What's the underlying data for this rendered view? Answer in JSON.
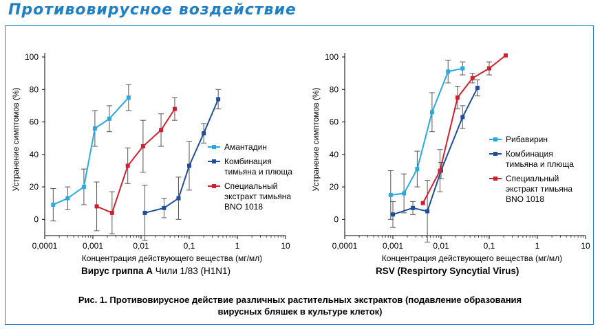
{
  "page_title": "Противовирусное воздействие",
  "caption_line1": "Рис. 1. Противовирусное действие различных растительных экстрактов (подавление образования",
  "caption_line2": "вирусных бляшек в культуре клеток)",
  "colors": {
    "frame": "#1e7fc4",
    "light_blue": "#29a9e1",
    "dark_blue": "#1f4e9c",
    "red": "#d0202e",
    "error_bar": "#555555"
  },
  "chart_data": [
    {
      "type": "line",
      "title_bold": "Вирус гриппа А",
      "title_rest": " Чили 1/83 (H1N1)",
      "xlabel": "Концентрация действующего вещества (мг/мл)",
      "ylabel": "Устранение симптомов (%)",
      "xscale": "log",
      "xlim": [
        0.0001,
        10
      ],
      "ylim": [
        -10,
        100
      ],
      "xticks": [
        "0,0001",
        "0,001",
        "0,01",
        "0,1",
        "1",
        "10"
      ],
      "yticks": [
        "0",
        "20",
        "40",
        "60",
        "80",
        "100"
      ],
      "legend_position": "right",
      "series": [
        {
          "name": "Амантадин",
          "color": "#29a9e1",
          "x": [
            0.00015,
            0.0003,
            0.00065,
            0.0011,
            0.0022,
            0.0055
          ],
          "y": [
            9,
            13,
            20,
            56,
            62,
            75
          ],
          "err": [
            10,
            7,
            11,
            11,
            8,
            8
          ]
        },
        {
          "name": "Комбинация тимьяна и плюща",
          "color": "#1f4e9c",
          "x": [
            0.012,
            0.03,
            0.06,
            0.1,
            0.2,
            0.4
          ],
          "y": [
            4,
            7,
            13,
            33,
            53,
            74
          ],
          "err": [
            17,
            6,
            13,
            15,
            6,
            6
          ]
        },
        {
          "name": "Специальный экстракт тимьяна BNO 1018",
          "color": "#d0202e",
          "x": [
            0.0012,
            0.0025,
            0.0053,
            0.011,
            0.026,
            0.05
          ],
          "y": [
            8,
            4,
            33,
            45,
            55,
            68
          ],
          "err": [
            15,
            13,
            11,
            16,
            10,
            7
          ]
        }
      ]
    },
    {
      "type": "line",
      "title_bold": "RSV (Respirtory Syncytial Virus)",
      "title_rest": "",
      "xlabel": "Концентрация действующего вещества (мг/мл)",
      "ylabel": "Устранение симптомов (%)",
      "xscale": "log",
      "xlim": [
        0.0001,
        10
      ],
      "ylim": [
        -10,
        100
      ],
      "xticks": [
        "0,0001",
        "0,001",
        "0,01",
        "0,1",
        "1",
        "10"
      ],
      "yticks": [
        "0",
        "20",
        "40",
        "60",
        "80",
        "100"
      ],
      "legend_position": "right",
      "series": [
        {
          "name": "Рибавирин",
          "color": "#29a9e1",
          "x": [
            0.0009,
            0.0017,
            0.0032,
            0.0065,
            0.014,
            0.028
          ],
          "y": [
            15,
            16,
            31,
            66,
            91,
            93
          ],
          "err": [
            15,
            12,
            11,
            12,
            7,
            4
          ]
        },
        {
          "name": "Комбинация тимьяна и плюща",
          "color": "#1f4e9c",
          "x": [
            0.001,
            0.0026,
            0.0052,
            0.01,
            0.028,
            0.057
          ],
          "y": [
            3,
            7,
            5,
            30,
            63,
            81
          ],
          "err": [
            8,
            4,
            19,
            5,
            7,
            5
          ]
        },
        {
          "name": "Специальный экстракт тимьяна BNO 1018",
          "color": "#d0202e",
          "x": [
            0.0042,
            0.0095,
            0.022,
            0.045,
            0.1,
            0.22
          ],
          "y": [
            10,
            30,
            75,
            87,
            93,
            101
          ],
          "err": [
            0,
            13,
            7,
            3,
            4,
            0
          ]
        }
      ]
    }
  ]
}
